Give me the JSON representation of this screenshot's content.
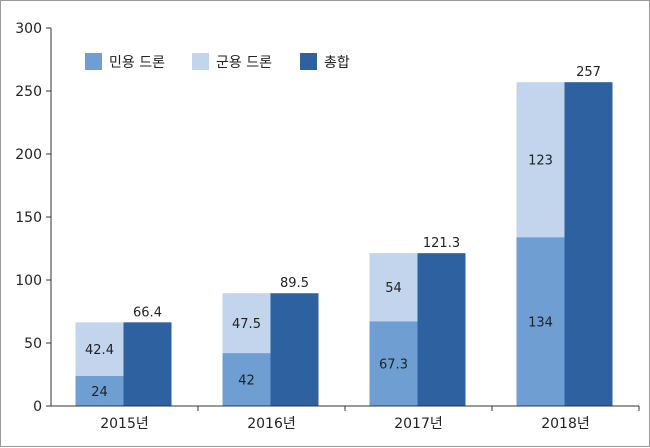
{
  "chart_data": {
    "type": "bar",
    "title": "",
    "xlabel": "",
    "ylabel": "",
    "ylim": [
      0,
      300
    ],
    "yticks": [
      0,
      50,
      100,
      150,
      200,
      250,
      300
    ],
    "grid": false,
    "legend": "top-left",
    "categories": [
      "2015년",
      "2016년",
      "2017년",
      "2018년"
    ],
    "stacked_group": [
      "민용 드론",
      "군용 드론"
    ],
    "series": [
      {
        "name": "민용 드론",
        "values": [
          24,
          42,
          67.3,
          134
        ],
        "labels": [
          "24",
          "42",
          "67.3",
          "134"
        ],
        "color": "#6f9fd2"
      },
      {
        "name": "군용 드론",
        "values": [
          42.4,
          47.5,
          54,
          123
        ],
        "labels": [
          "42.4",
          "47.5",
          "54",
          "123"
        ],
        "color": "#c3d5ec"
      },
      {
        "name": "총합",
        "values": [
          66.4,
          89.5,
          121.3,
          257
        ],
        "labels": [
          "66.4",
          "89.5",
          "121.3",
          "257"
        ],
        "color": "#2d61a0"
      }
    ]
  }
}
